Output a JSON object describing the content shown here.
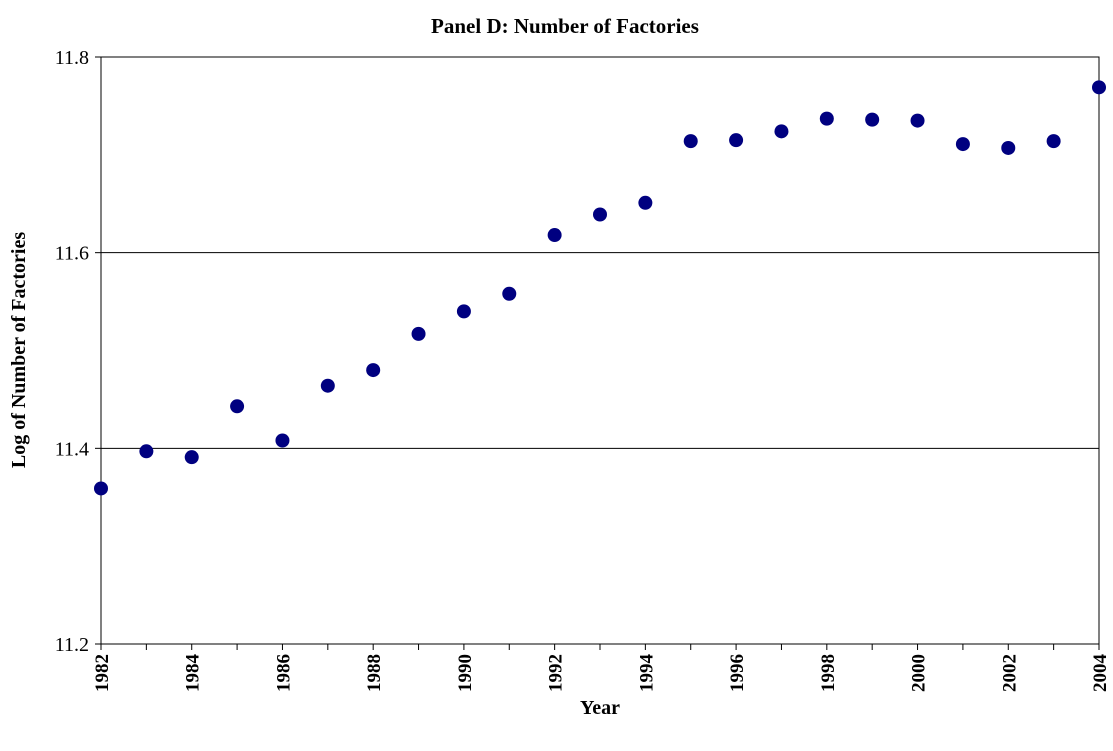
{
  "chart_data": {
    "type": "scatter",
    "title": "Panel D: Number of Factories",
    "xlabel": "Year",
    "ylabel": "Log of Number of Factories",
    "x": [
      1982,
      1983,
      1984,
      1985,
      1986,
      1987,
      1988,
      1989,
      1990,
      1991,
      1992,
      1993,
      1994,
      1995,
      1996,
      1997,
      1998,
      1999,
      2000,
      2001,
      2002,
      2003,
      2004
    ],
    "series": [
      {
        "values": [
          11.359,
          11.397,
          11.391,
          11.443,
          11.408,
          11.464,
          11.48,
          11.517,
          11.54,
          11.558,
          11.618,
          11.639,
          11.651,
          11.714,
          11.715,
          11.724,
          11.737,
          11.736,
          11.735,
          11.711,
          11.707,
          11.714,
          11.769
        ],
        "color": "#000080"
      }
    ],
    "xlim": [
      1982,
      2004
    ],
    "ylim": [
      11.2,
      11.8
    ],
    "yticks": [
      "11.2",
      "11.4",
      "11.6",
      "11.8"
    ],
    "xticks": [
      "1982",
      "1984",
      "1986",
      "1988",
      "1990",
      "1992",
      "1994",
      "1996",
      "1998",
      "2000",
      "2002",
      "2004"
    ],
    "grid": "horizontal",
    "legend": "none"
  }
}
